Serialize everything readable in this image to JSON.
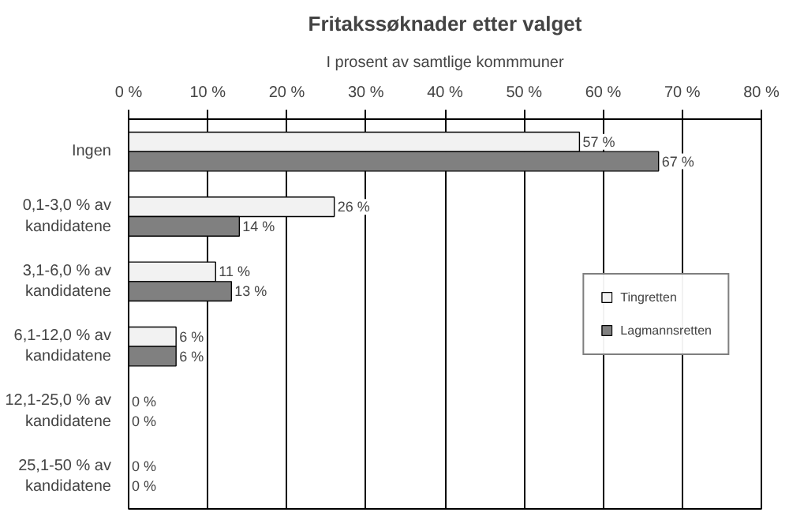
{
  "chart_data": {
    "type": "bar",
    "orientation": "horizontal",
    "title": "Fritakssøknader etter valget",
    "subtitle": "I prosent av samtlige kommmuner",
    "categories": [
      "Ingen",
      "0,1-3,0 % av kandidatene",
      "3,1-6,0 % av kandidatene",
      "6,1-12,0 % av kandidatene",
      "12,1-25,0 % av kandidatene",
      "25,1-50 % av kandidatene"
    ],
    "series": [
      {
        "name": "Tingretten",
        "color": "#f2f2f2",
        "values": [
          57,
          26,
          11,
          6,
          0,
          0
        ],
        "value_labels": [
          "57 %",
          "26 %",
          "11 %",
          "6 %",
          "0 %",
          "0 %"
        ]
      },
      {
        "name": "Lagmannsretten",
        "color": "#808080",
        "values": [
          67,
          14,
          13,
          6,
          0,
          0
        ],
        "value_labels": [
          "67 %",
          "14 %",
          "13 %",
          "6 %",
          "0 %",
          "0 %"
        ]
      }
    ],
    "xlim": [
      0,
      80
    ],
    "xticks": [
      {
        "value": 0,
        "label": "0 %"
      },
      {
        "value": 10,
        "label": "10 %"
      },
      {
        "value": 20,
        "label": "20 %"
      },
      {
        "value": 30,
        "label": "30 %"
      },
      {
        "value": 40,
        "label": "40 %"
      },
      {
        "value": 50,
        "label": "50 %"
      },
      {
        "value": 60,
        "label": "60 %"
      },
      {
        "value": 70,
        "label": "70 %"
      },
      {
        "value": 80,
        "label": "80 %"
      }
    ],
    "grid": "x",
    "legend": "right"
  }
}
